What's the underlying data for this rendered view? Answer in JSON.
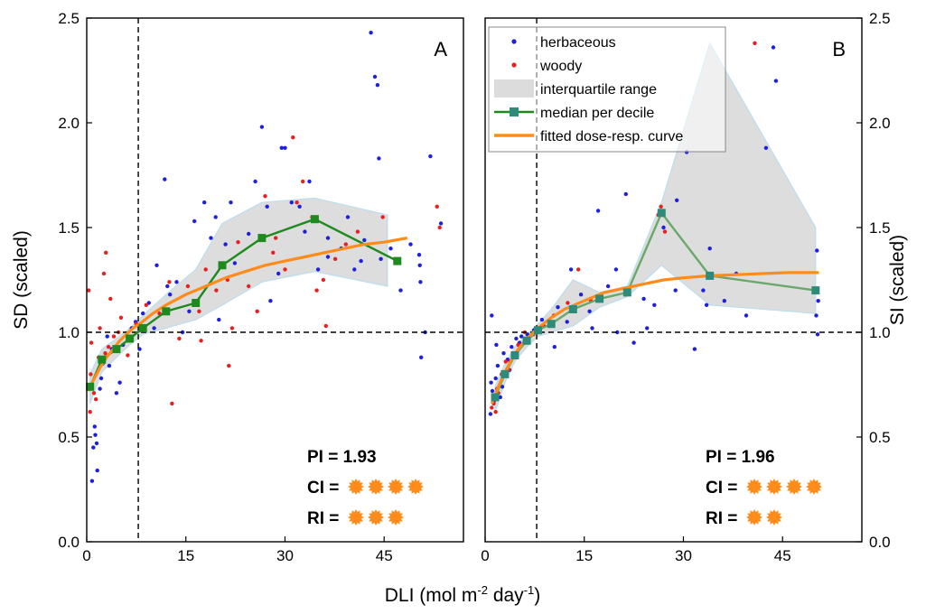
{
  "chart_data": {
    "type": "scatter",
    "shared_xlabel": "DLI (mol m-2 day-1)",
    "xlabel_parts": [
      "DLI (mol m",
      "-2",
      " day",
      "-1",
      ")"
    ],
    "colors": {
      "herbaceous": "#1f1fe0",
      "woody": "#e81f1f",
      "median_A": "#1e8a1e",
      "median_B": "#6aa86a",
      "median_marker_B": "#2e8b7a",
      "fit": "#ff8c1a",
      "iqr_fill": "#dcdcdc",
      "iqr_edge": "#b8dcee",
      "star": "#ff8c1a"
    },
    "legend": {
      "placement": "top-left of panel B",
      "entries": [
        {
          "label": "herbaceous",
          "kind": "point",
          "color": "#1f1fe0"
        },
        {
          "label": "woody",
          "kind": "point",
          "color": "#e81f1f"
        },
        {
          "label": "interquartile range",
          "kind": "area",
          "color": "#dcdcdc"
        },
        {
          "label": "median per decile",
          "kind": "line-marker",
          "color": "#2e8b7a"
        },
        {
          "label": "fitted dose-resp. curve",
          "kind": "line",
          "color": "#ff8c1a"
        }
      ]
    },
    "panels": [
      {
        "letter": "A",
        "ylabel": "SD (scaled)",
        "ylabel_side": "left",
        "xlim": [
          0,
          57
        ],
        "ylim": [
          0,
          2.5
        ],
        "xticks": [
          0,
          15,
          30,
          45
        ],
        "xtick_labels": [
          "0",
          "15",
          "30",
          "45"
        ],
        "yticks": [
          0,
          0.5,
          1.0,
          1.5,
          2.0,
          2.5
        ],
        "ytick_labels": [
          "0.0",
          "0.5",
          "1.0",
          "1.5",
          "2.0",
          "2.5"
        ],
        "ref_vline_x": 7.8,
        "ref_hline_y": 1.0,
        "pi_label": "PI = 1.93",
        "ci_label": "CI =",
        "ri_label": "RI =",
        "ci_stars": 4,
        "ri_stars": 3,
        "fit": {
          "x": [
            0.2,
            1,
            2,
            3,
            4,
            5,
            6,
            7,
            8,
            10,
            12,
            15,
            18,
            21,
            24,
            27,
            30,
            33,
            36,
            39,
            42,
            45,
            48.5
          ],
          "y": [
            0.72,
            0.77,
            0.83,
            0.88,
            0.92,
            0.96,
            0.99,
            1.02,
            1.04,
            1.09,
            1.13,
            1.18,
            1.22,
            1.26,
            1.29,
            1.32,
            1.34,
            1.36,
            1.38,
            1.4,
            1.42,
            1.43,
            1.45
          ]
        },
        "median": {
          "x": [
            0.5,
            2.3,
            4.5,
            6.5,
            8.5,
            12,
            16.5,
            20.5,
            26.5,
            34.5,
            47
          ],
          "y": [
            0.74,
            0.87,
            0.92,
            0.97,
            1.02,
            1.1,
            1.14,
            1.32,
            1.45,
            1.54,
            1.34
          ]
        },
        "iqr": {
          "x": [
            0.5,
            2.3,
            4.5,
            6.5,
            8.5,
            12,
            16.5,
            20.5,
            26.5,
            34.5,
            45.5
          ],
          "lower": [
            0.66,
            0.81,
            0.88,
            0.94,
            0.99,
            1.02,
            1.06,
            1.13,
            1.24,
            1.29,
            1.22
          ],
          "upper": [
            0.8,
            0.92,
            0.97,
            1.02,
            1.08,
            1.18,
            1.3,
            1.52,
            1.62,
            1.64,
            1.56
          ]
        },
        "herbaceous": {
          "x": [
            0.8,
            1.0,
            1.3,
            1.6,
            2.0,
            2.4,
            3.1,
            3.8,
            4.5,
            5.5,
            6.8,
            8.5,
            10.2,
            11.8,
            12.6,
            14.5,
            16.3,
            17.8,
            19.5,
            21.0,
            22.4,
            24.5,
            26.5,
            27.8,
            29.5,
            31.0,
            33.0,
            35.0,
            36.5,
            38.5,
            40.5,
            43.0,
            43.6,
            44.0,
            44.2,
            46.0,
            47.5,
            49.0,
            50.3,
            50.4,
            50.5,
            50.6,
            51.2,
            52.0,
            53.6,
            1.2,
            1.5,
            2.2,
            3.4,
            5.0,
            7.4,
            9.4,
            13.6,
            18.8,
            21.8,
            25.5,
            30.0,
            32.2,
            36.5,
            39.5,
            44.5,
            15.5,
            20.0,
            29.0,
            41.5,
            42.0,
            12.2,
            10.6,
            8.0,
            27.3,
            33.7
          ],
          "y": [
            0.29,
            0.45,
            0.51,
            0.34,
            0.73,
            0.85,
            0.98,
            0.92,
            0.71,
            0.94,
            1.02,
            1.09,
            1.02,
            1.73,
            1.18,
            1.0,
            1.53,
            1.62,
            1.55,
            1.42,
            1.33,
            1.47,
            1.98,
            1.15,
            1.88,
            1.62,
            1.48,
            1.3,
            1.36,
            1.4,
            1.3,
            2.43,
            2.22,
            2.18,
            1.83,
            1.4,
            1.2,
            1.42,
            1.37,
            1.32,
            1.24,
            0.88,
            1.0,
            1.84,
            1.52,
            0.55,
            0.47,
            0.78,
            0.84,
            0.76,
            1.05,
            1.14,
            1.24,
            1.45,
            1.62,
            1.72,
            1.88,
            1.6,
            1.45,
            1.55,
            1.35,
            1.1,
            1.06,
            1.28,
            1.34,
            1.44,
            1.22,
            1.32,
            0.92,
            1.6,
            1.72
          ]
        },
        "woody": {
          "x": [
            0.3,
            0.5,
            0.7,
            1.1,
            1.8,
            2.6,
            3.3,
            4.1,
            5.2,
            6.2,
            7.5,
            9.0,
            11.0,
            12.9,
            14.0,
            15.3,
            17.0,
            18.0,
            19.6,
            21.3,
            22.9,
            24.5,
            25.8,
            27.0,
            28.6,
            30.0,
            31.2,
            32.7,
            34.1,
            35.8,
            37.6,
            39.2,
            41.0,
            44.8,
            53.0,
            53.4,
            0.6,
            1.4,
            2.0,
            2.9,
            4.8,
            12.5,
            17.3,
            21.5,
            28.2,
            31.8,
            34.8,
            22.0,
            36.2,
            2.8,
            3.6
          ],
          "y": [
            1.2,
            0.62,
            0.95,
            0.71,
            0.88,
            1.28,
            0.93,
            0.98,
            1.07,
            0.89,
            1.04,
            1.13,
            1.09,
            0.66,
            0.97,
            1.22,
            1.1,
            1.3,
            1.2,
            1.25,
            1.43,
            1.22,
            1.1,
            1.65,
            1.45,
            1.3,
            1.93,
            1.72,
            1.55,
            1.25,
            1.35,
            1.42,
            1.48,
            1.55,
            1.6,
            1.5,
            0.8,
            0.68,
            1.02,
            1.38,
            1.0,
            1.24,
            0.96,
            0.84,
            1.38,
            1.62,
            1.2,
            1.02,
            1.03,
            0.9,
            1.16
          ]
        }
      },
      {
        "letter": "B",
        "ylabel": "SI (scaled)",
        "ylabel_side": "right",
        "xlim": [
          0,
          57
        ],
        "ylim": [
          0,
          2.5
        ],
        "xticks": [
          0,
          15,
          30,
          45
        ],
        "xtick_labels": [
          "0",
          "15",
          "30",
          "45"
        ],
        "yticks": [
          0,
          0.5,
          1.0,
          1.5,
          2.0,
          2.5
        ],
        "ytick_labels": [
          "0.0",
          "0.5",
          "1.0",
          "1.5",
          "2.0",
          "2.5"
        ],
        "ref_vline_x": 7.8,
        "ref_hline_y": 1.0,
        "pi_label": "PI = 1.96",
        "ci_label": "CI =",
        "ri_label": "RI =",
        "ci_stars": 4,
        "ri_stars": 2,
        "fit": {
          "x": [
            1.0,
            2,
            3,
            4,
            5,
            6,
            7,
            8,
            10,
            12,
            15,
            18,
            21,
            24,
            27,
            30,
            34,
            38,
            42,
            46,
            50.5
          ],
          "y": [
            0.66,
            0.74,
            0.81,
            0.87,
            0.92,
            0.96,
            0.99,
            1.02,
            1.07,
            1.11,
            1.15,
            1.19,
            1.21,
            1.23,
            1.25,
            1.26,
            1.27,
            1.275,
            1.28,
            1.285,
            1.285
          ]
        },
        "median": {
          "x": [
            1.5,
            3.0,
            4.5,
            6.3,
            8.0,
            10.0,
            13.3,
            17.3,
            21.5,
            26.7,
            34.0,
            50.0
          ],
          "y": [
            0.69,
            0.8,
            0.89,
            0.96,
            1.01,
            1.04,
            1.11,
            1.16,
            1.19,
            1.57,
            1.27,
            1.2
          ]
        },
        "iqr": {
          "x": [
            1.5,
            3.0,
            4.5,
            6.3,
            8.0,
            10.0,
            13.3,
            17.3,
            21.5,
            26.7,
            34.0,
            50.0
          ],
          "lower": [
            0.62,
            0.76,
            0.86,
            0.93,
            0.98,
            1.0,
            1.03,
            1.12,
            1.17,
            1.32,
            1.13,
            1.09
          ],
          "upper": [
            0.74,
            0.85,
            0.93,
            0.99,
            1.04,
            1.11,
            1.25,
            1.19,
            1.22,
            1.62,
            2.38,
            1.5
          ]
        },
        "herbaceous": {
          "x": [
            0.8,
            1.0,
            1.1,
            1.3,
            1.6,
            1.9,
            2.3,
            2.8,
            3.4,
            4.0,
            4.7,
            5.5,
            6.4,
            7.4,
            8.6,
            9.8,
            11.0,
            12.4,
            13.0,
            14.5,
            15.8,
            17.1,
            18.6,
            20.0,
            21.3,
            22.5,
            24.0,
            25.6,
            27.0,
            28.8,
            30.5,
            31.7,
            33.0,
            34.0,
            36.2,
            38.0,
            39.5,
            42.5,
            43.6,
            44.0,
            50.0,
            50.1,
            50.2,
            50.3,
            0.9,
            1.7,
            2.6,
            3.7,
            5.2,
            10.5,
            16.2,
            24.5,
            29.0,
            50.4,
            19.8,
            33.5
          ],
          "y": [
            0.61,
            1.08,
            0.72,
            0.67,
            0.78,
            0.84,
            0.69,
            0.9,
            0.87,
            0.93,
            0.97,
            0.98,
            0.99,
            1.01,
            1.06,
            1.03,
            1.12,
            1.05,
            1.3,
            1.18,
            1.1,
            1.58,
            1.22,
            1.0,
            1.66,
            0.95,
            1.16,
            1.13,
            1.5,
            1.2,
            1.86,
            0.92,
            1.2,
            1.4,
            1.15,
            1.28,
            1.08,
            1.88,
            2.36,
            2.2,
            1.2,
            1.08,
            1.39,
            0.99,
            0.76,
            0.94,
            0.74,
            0.82,
            0.95,
            0.93,
            1.02,
            1.02,
            1.63,
            1.15,
            1.3,
            1.13
          ]
        },
        "woody": {
          "x": [
            1.0,
            1.3,
            1.6,
            2.0,
            2.5,
            3.1,
            3.6,
            4.2,
            5.0,
            6.0,
            7.3,
            8.9,
            10.4,
            12.5,
            14.1,
            16.0,
            26.2,
            26.6,
            27.2,
            40.8,
            1.8,
            3.8
          ],
          "y": [
            0.64,
            0.66,
            0.62,
            0.71,
            0.8,
            0.86,
            0.82,
            0.9,
            0.94,
            1.0,
            0.99,
            1.03,
            1.08,
            1.14,
            1.3,
            1.15,
            1.56,
            1.6,
            1.48,
            2.38,
            0.73,
            0.86
          ]
        }
      }
    ]
  }
}
